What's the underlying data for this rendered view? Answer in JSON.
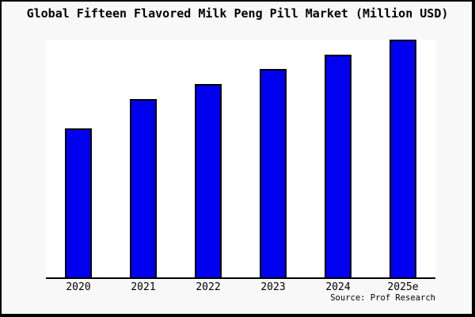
{
  "title": "Global Fifteen Flavored Milk Peng Pill Market (Million USD)",
  "source": "Source: Prof Research",
  "colors": {
    "frame_bg": "#f8f8f8",
    "frame_border": "#000000",
    "plot_bg": "#ffffff",
    "axis": "#000000",
    "bar_fill": "#0000f0",
    "bar_border": "#000000",
    "text": "#000000"
  },
  "chart_data": {
    "type": "bar",
    "title": "Global Fifteen Flavored Milk Peng Pill Market (Million USD)",
    "categories": [
      "2020",
      "2021",
      "2022",
      "2023",
      "2024",
      "2025e"
    ],
    "values": [
      62.7,
      75.0,
      81.3,
      87.7,
      93.7,
      100.0
    ],
    "value_note": "No y-axis or value labels shown; values are bar heights as percent of the tallest bar (2025e = 100)",
    "xlabel": "",
    "ylabel": "",
    "ylim": [
      0,
      100
    ],
    "grid": false,
    "legend": false,
    "bar_color": "#0000f0",
    "annotations": [
      "Source: Prof Research"
    ]
  }
}
